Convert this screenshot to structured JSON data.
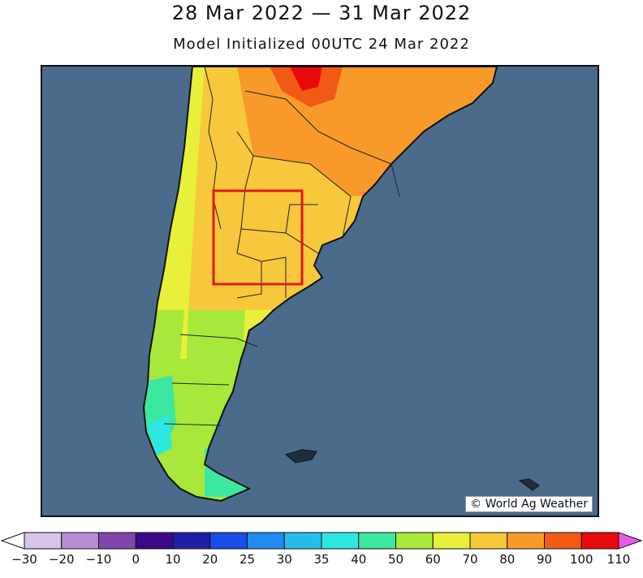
{
  "title": "28 Mar 2022 — 31 Mar 2022",
  "subtitle": "Model Initialized 00UTC 24 Mar 2022",
  "credit": "World Ag Weather",
  "credit_icon": "copyright-icon",
  "colorbar": {
    "labels": [
      "-30",
      "-20",
      "-10",
      "0",
      "10",
      "20",
      "25",
      "30",
      "35",
      "40",
      "50",
      "60",
      "70",
      "80",
      "90",
      "100",
      "110"
    ],
    "colors": [
      "#d8c4e6",
      "#b48fd0",
      "#7d48aa",
      "#3a0a86",
      "#1e1ea8",
      "#1a4ce6",
      "#1f8af0",
      "#28bde8",
      "#2ee8e0",
      "#3ce8a0",
      "#a8e83a",
      "#e8f03a",
      "#f8c83c",
      "#f89a2a",
      "#f05a14",
      "#e80a0a",
      "#f03ad8"
    ],
    "low_extend_color": "#ffffff",
    "high_extend_color": "#e85ae8"
  },
  "highlight_box_color": "#e01818"
}
